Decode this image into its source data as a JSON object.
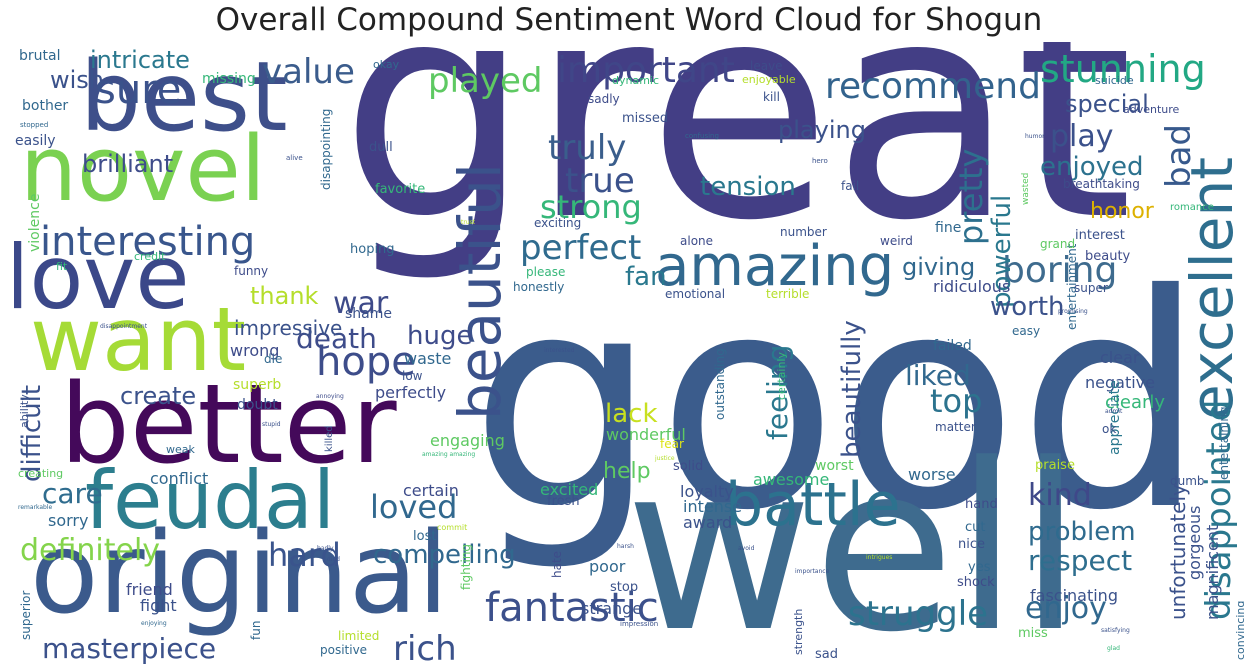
{
  "chart_data": {
    "type": "wordcloud",
    "title": "Overall Compound Sentiment Word Cloud for Shogun",
    "colormap": "viridis",
    "background": "#ffffff",
    "words": [
      {
        "text": "great",
        "weight": 100,
        "color": "#433e85"
      },
      {
        "text": "good",
        "weight": 96,
        "color": "#3b5c8c"
      },
      {
        "text": "well",
        "weight": 88,
        "color": "#3e6b8e"
      },
      {
        "text": "original",
        "weight": 50,
        "color": "#3b5a8c"
      },
      {
        "text": "better",
        "weight": 48,
        "color": "#44095a"
      },
      {
        "text": "best",
        "weight": 46,
        "color": "#3e4f8a"
      },
      {
        "text": "novel",
        "weight": 44,
        "color": "#7ad151"
      },
      {
        "text": "love",
        "weight": 44,
        "color": "#3b4889"
      },
      {
        "text": "want",
        "weight": 42,
        "color": "#a5db36"
      },
      {
        "text": "feudal",
        "weight": 40,
        "color": "#2c7e8e"
      },
      {
        "text": "beautiful",
        "weight": 36,
        "color": "#3b528b"
      },
      {
        "text": "excellent",
        "weight": 36,
        "color": "#2e6e8e"
      },
      {
        "text": "amazing",
        "weight": 32,
        "color": "#31688e"
      },
      {
        "text": "battle",
        "weight": 30,
        "color": "#2c728e"
      },
      {
        "text": "interesting",
        "weight": 22,
        "color": "#39568c"
      },
      {
        "text": "fantastic",
        "weight": 22,
        "color": "#3c508b"
      },
      {
        "text": "sure",
        "weight": 22,
        "color": "#3b528b"
      },
      {
        "text": "important",
        "weight": 22,
        "color": "#404688"
      },
      {
        "text": "hope",
        "weight": 22,
        "color": "#3d4d8a"
      },
      {
        "text": "value",
        "weight": 20,
        "color": "#3b5c8c"
      },
      {
        "text": "played",
        "weight": 20,
        "color": "#5ec962"
      },
      {
        "text": "recommend",
        "weight": 20,
        "color": "#33638d"
      },
      {
        "text": "stunning",
        "weight": 20,
        "color": "#22a884"
      },
      {
        "text": "disappointed",
        "weight": 20,
        "color": "#2a788e"
      },
      {
        "text": "truly",
        "weight": 20,
        "color": "#3a5e8c"
      },
      {
        "text": "true",
        "weight": 20,
        "color": "#3b528b"
      },
      {
        "text": "strong",
        "weight": 20,
        "color": "#35b779"
      },
      {
        "text": "perfect",
        "weight": 20,
        "color": "#2f6b8e"
      },
      {
        "text": "boring",
        "weight": 20,
        "color": "#3e6b8e"
      },
      {
        "text": "bad",
        "weight": 20,
        "color": "#37598c"
      },
      {
        "text": "pretty",
        "weight": 20,
        "color": "#2d708e"
      },
      {
        "text": "loved",
        "weight": 20,
        "color": "#31688e"
      },
      {
        "text": "struggle",
        "weight": 20,
        "color": "#2c738e"
      },
      {
        "text": "definitely",
        "weight": 18,
        "color": "#84d44b"
      },
      {
        "text": "hard",
        "weight": 18,
        "color": "#3a548c"
      },
      {
        "text": "rich",
        "weight": 18,
        "color": "#3b528b"
      },
      {
        "text": "masterpiece",
        "weight": 18,
        "color": "#3b518b"
      },
      {
        "text": "enjoy",
        "weight": 18,
        "color": "#31688e"
      },
      {
        "text": "kind",
        "weight": 18,
        "color": "#3f4889"
      },
      {
        "text": "problem",
        "weight": 18,
        "color": "#2f6b8e"
      },
      {
        "text": "respect",
        "weight": 18,
        "color": "#2e6e8e"
      },
      {
        "text": "play",
        "weight": 18,
        "color": "#3b518b"
      },
      {
        "text": "top",
        "weight": 18,
        "color": "#2c738e"
      },
      {
        "text": "war",
        "weight": 18,
        "color": "#3e4a89"
      },
      {
        "text": "death",
        "weight": 18,
        "color": "#3e4c8a"
      },
      {
        "text": "care",
        "weight": 18,
        "color": "#2f6c8e"
      },
      {
        "text": "difficult",
        "weight": 16,
        "color": "#3b528b"
      },
      {
        "text": "huge",
        "weight": 16,
        "color": "#3e4c8a"
      },
      {
        "text": "powerful",
        "weight": 16,
        "color": "#2a788e"
      },
      {
        "text": "feeling",
        "weight": 16,
        "color": "#2a788e"
      },
      {
        "text": "beautifully",
        "weight": 16,
        "color": "#3b528b"
      },
      {
        "text": "compelling",
        "weight": 16,
        "color": "#31688e"
      },
      {
        "text": "lack",
        "weight": 16,
        "color": "#c8e020"
      },
      {
        "text": "liked",
        "weight": 16,
        "color": "#31688e"
      },
      {
        "text": "worth",
        "weight": 16,
        "color": "#3b528b"
      },
      {
        "text": "enjoyed",
        "weight": 16,
        "color": "#2c728e"
      },
      {
        "text": "special",
        "weight": 16,
        "color": "#3b528b"
      },
      {
        "text": "brilliant",
        "weight": 16,
        "color": "#3e4c8a"
      },
      {
        "text": "intricate",
        "weight": 16,
        "color": "#2a788e"
      },
      {
        "text": "wish",
        "weight": 16,
        "color": "#3b528b"
      },
      {
        "text": "tension",
        "weight": 16,
        "color": "#2a788e"
      },
      {
        "text": "playing",
        "weight": 16,
        "color": "#3b528b"
      },
      {
        "text": "fan",
        "weight": 16,
        "color": "#2a788e"
      },
      {
        "text": "giving",
        "weight": 16,
        "color": "#31688e"
      },
      {
        "text": "create",
        "weight": 16,
        "color": "#3b528b"
      },
      {
        "text": "thank",
        "weight": 16,
        "color": "#b5de2b"
      },
      {
        "text": "help",
        "weight": 14,
        "color": "#5ec962"
      },
      {
        "text": "honor",
        "weight": 14,
        "color": "#ddb100"
      },
      {
        "text": "unfortunately",
        "weight": 14,
        "color": "#3b528b"
      },
      {
        "text": "impressive",
        "weight": 13,
        "color": "#3b528b"
      },
      {
        "text": "friend",
        "weight": 12,
        "color": "#3e4c8a"
      },
      {
        "text": "fight",
        "weight": 12,
        "color": "#3b528b"
      },
      {
        "text": "poor",
        "weight": 12,
        "color": "#31688e"
      },
      {
        "text": "strange",
        "weight": 12,
        "color": "#3b528b"
      },
      {
        "text": "engaging",
        "weight": 12,
        "color": "#5ec962"
      },
      {
        "text": "excited",
        "weight": 12,
        "color": "#35b779"
      },
      {
        "text": "clearly",
        "weight": 12,
        "color": "#35b779"
      },
      {
        "text": "clear",
        "weight": 12,
        "color": "#3b528b"
      },
      {
        "text": "negative",
        "weight": 12,
        "color": "#3b528b"
      },
      {
        "text": "ridiculous",
        "weight": 12,
        "color": "#3e4c8a"
      },
      {
        "text": "worse",
        "weight": 12,
        "color": "#31688e"
      },
      {
        "text": "awesome",
        "weight": 12,
        "color": "#35b779"
      },
      {
        "text": "magnificent",
        "weight": 12,
        "color": "#3b528b"
      },
      {
        "text": "gorgeous",
        "weight": 12,
        "color": "#3b528b"
      },
      {
        "text": "fascinating",
        "weight": 12,
        "color": "#3b528b"
      },
      {
        "text": "conflict",
        "weight": 12,
        "color": "#31688e"
      },
      {
        "text": "sorry",
        "weight": 12,
        "color": "#31688e"
      },
      {
        "text": "certain",
        "weight": 12,
        "color": "#3e4c8a"
      },
      {
        "text": "loyalty",
        "weight": 12,
        "color": "#3b528b"
      },
      {
        "text": "intense",
        "weight": 12,
        "color": "#31688e"
      },
      {
        "text": "award",
        "weight": 12,
        "color": "#3b528b"
      },
      {
        "text": "perfectly",
        "weight": 12,
        "color": "#3e4c8a"
      },
      {
        "text": "superb",
        "weight": 12,
        "color": "#b5de2b"
      },
      {
        "text": "waste",
        "weight": 12,
        "color": "#31688e"
      },
      {
        "text": "wrong",
        "weight": 12,
        "color": "#3e4c8a"
      },
      {
        "text": "shame",
        "weight": 12,
        "color": "#3b528b"
      },
      {
        "text": "wonderful",
        "weight": 12,
        "color": "#5ec962"
      },
      {
        "text": "doubt",
        "weight": 12,
        "color": "#3b528b"
      },
      {
        "text": "bother",
        "weight": 12,
        "color": "#31688e"
      },
      {
        "text": "easily",
        "weight": 12,
        "color": "#3b528b"
      },
      {
        "text": "missing",
        "weight": 11,
        "color": "#35b779"
      },
      {
        "text": "brutal",
        "weight": 11,
        "color": "#31688e"
      },
      {
        "text": "violence",
        "weight": 11,
        "color": "#5ec962"
      },
      {
        "text": "entertainment",
        "weight": 11,
        "color": "#31688e"
      },
      {
        "text": "appreciate",
        "weight": 11,
        "color": "#2a788e"
      },
      {
        "text": "entertaining",
        "weight": 10,
        "color": "#31688e"
      },
      {
        "text": "outstanding",
        "weight": 10,
        "color": "#31688e"
      },
      {
        "text": "certainly",
        "weight": 10,
        "color": "#35b779"
      },
      {
        "text": "failed",
        "weight": 11,
        "color": "#31688e"
      },
      {
        "text": "fine",
        "weight": 11,
        "color": "#31688e"
      },
      {
        "text": "interest",
        "weight": 11,
        "color": "#3b528b"
      },
      {
        "text": "beauty",
        "weight": 11,
        "color": "#3e4c8a"
      },
      {
        "text": "worst",
        "weight": 11,
        "color": "#5ec962"
      },
      {
        "text": "praise",
        "weight": 11,
        "color": "#b5de2b"
      },
      {
        "text": "solid",
        "weight": 11,
        "color": "#3e4c8a"
      },
      {
        "text": "fresh",
        "weight": 11,
        "color": "#3b528b"
      },
      {
        "text": "lost",
        "weight": 11,
        "color": "#31688e"
      },
      {
        "text": "hand",
        "weight": 11,
        "color": "#3e4c8a"
      },
      {
        "text": "cut",
        "weight": 11,
        "color": "#31688e"
      },
      {
        "text": "nice",
        "weight": 11,
        "color": "#3b528b"
      },
      {
        "text": "yes",
        "weight": 11,
        "color": "#31688e"
      },
      {
        "text": "shock",
        "weight": 11,
        "color": "#3e4c8a"
      },
      {
        "text": "miss",
        "weight": 11,
        "color": "#5ec962"
      },
      {
        "text": "sad",
        "weight": 11,
        "color": "#3b528b"
      },
      {
        "text": "stop",
        "weight": 11,
        "color": "#3b528b"
      },
      {
        "text": "fun",
        "weight": 10,
        "color": "#31688e"
      },
      {
        "text": "positive",
        "weight": 10,
        "color": "#31688e"
      },
      {
        "text": "limited",
        "weight": 10,
        "color": "#b5de2b"
      },
      {
        "text": "superior",
        "weight": 10,
        "color": "#31688e"
      },
      {
        "text": "fighting",
        "weight": 9,
        "color": "#5ec962"
      },
      {
        "text": "hate",
        "weight": 10,
        "color": "#3e4c8a"
      },
      {
        "text": "dumb",
        "weight": 10,
        "color": "#3b528b"
      },
      {
        "text": "matter",
        "weight": 10,
        "color": "#3b528b"
      },
      {
        "text": "ok",
        "weight": 10,
        "color": "#3b528b"
      },
      {
        "text": "fear",
        "weight": 9,
        "color": "#dde318"
      },
      {
        "text": "die",
        "weight": 10,
        "color": "#31688e"
      },
      {
        "text": "low",
        "weight": 9,
        "color": "#3b528b"
      },
      {
        "text": "easy",
        "weight": 10,
        "color": "#31688e"
      },
      {
        "text": "super",
        "weight": 10,
        "color": "#3b528b"
      },
      {
        "text": "grand",
        "weight": 10,
        "color": "#5ec962"
      },
      {
        "text": "terrible",
        "weight": 10,
        "color": "#b5de2b"
      },
      {
        "text": "emotional",
        "weight": 10,
        "color": "#3b528b"
      },
      {
        "text": "honestly",
        "weight": 10,
        "color": "#31688e"
      },
      {
        "text": "please",
        "weight": 10,
        "color": "#35b779"
      },
      {
        "text": "alone",
        "weight": 10,
        "color": "#3e4c8a"
      },
      {
        "text": "number",
        "weight": 10,
        "color": "#3b528b"
      },
      {
        "text": "weird",
        "weight": 10,
        "color": "#3e4c8a"
      },
      {
        "text": "romance",
        "weight": 9,
        "color": "#35b779"
      },
      {
        "text": "breathtaking",
        "weight": 10,
        "color": "#3e4c8a"
      },
      {
        "text": "fail",
        "weight": 10,
        "color": "#3b528b"
      },
      {
        "text": "hoping",
        "weight": 10,
        "color": "#31688e"
      },
      {
        "text": "exciting",
        "weight": 10,
        "color": "#3b528b"
      },
      {
        "text": "favorite",
        "weight": 10,
        "color": "#35b779"
      },
      {
        "text": "dull",
        "weight": 10,
        "color": "#3b528b"
      },
      {
        "text": "disappointing",
        "weight": 10,
        "color": "#31688e"
      },
      {
        "text": "missed",
        "weight": 10,
        "color": "#3b528b"
      },
      {
        "text": "sadly",
        "weight": 10,
        "color": "#3e4c8a"
      },
      {
        "text": "kill",
        "weight": 10,
        "color": "#3b528b"
      },
      {
        "text": "leave",
        "weight": 10,
        "color": "#3e4c8a"
      },
      {
        "text": "enjoyable",
        "weight": 10,
        "color": "#b5de2b"
      },
      {
        "text": "dynamic",
        "weight": 9,
        "color": "#35b779"
      },
      {
        "text": "okay",
        "weight": 9,
        "color": "#31688e"
      },
      {
        "text": "suicide",
        "weight": 9,
        "color": "#31688e"
      },
      {
        "text": "adventure",
        "weight": 9,
        "color": "#3e4c8a"
      },
      {
        "text": "funny",
        "weight": 9,
        "color": "#3e4c8a"
      },
      {
        "text": "credit",
        "weight": 9,
        "color": "#35b779"
      },
      {
        "text": "fit",
        "weight": 9,
        "color": "#35b779"
      },
      {
        "text": "ability",
        "weight": 9,
        "color": "#3b528b"
      },
      {
        "text": "weak",
        "weight": 9,
        "color": "#31688e"
      },
      {
        "text": "creating",
        "weight": 9,
        "color": "#5ec962"
      },
      {
        "text": "killed",
        "weight": 8,
        "color": "#3b528b"
      },
      {
        "text": "wasted",
        "weight": 7,
        "color": "#5ec962"
      },
      {
        "text": "confusing",
        "weight": 6,
        "color": "#31688e"
      },
      {
        "text": "stopped",
        "weight": 6,
        "color": "#31688e"
      },
      {
        "text": "alive",
        "weight": 6,
        "color": "#3b528b"
      },
      {
        "text": "hero",
        "weight": 6,
        "color": "#3b528b"
      },
      {
        "text": "humor",
        "weight": 5,
        "color": "#3b528b"
      },
      {
        "text": "trust",
        "weight": 5,
        "color": "#b5de2b"
      },
      {
        "text": "disappointment",
        "weight": 5,
        "color": "#3b528b"
      },
      {
        "text": "promising",
        "weight": 5,
        "color": "#3b528b"
      },
      {
        "text": "interested",
        "weight": 5,
        "color": "#3b528b"
      },
      {
        "text": "annoying",
        "weight": 5,
        "color": "#3e4c8a"
      },
      {
        "text": "stupid",
        "weight": 5,
        "color": "#3b528b"
      },
      {
        "text": "amazing amazing",
        "weight": 5,
        "color": "#35b779"
      },
      {
        "text": "justice",
        "weight": 5,
        "color": "#b5de2b"
      },
      {
        "text": "admit",
        "weight": 5,
        "color": "#3b528b"
      },
      {
        "text": "remarkable",
        "weight": 5,
        "color": "#31688e"
      },
      {
        "text": "commit",
        "weight": 6,
        "color": "#b5de2b"
      },
      {
        "text": "badly",
        "weight": 5,
        "color": "#3b528b"
      },
      {
        "text": "died",
        "weight": 5,
        "color": "#3b528b"
      },
      {
        "text": "harsh",
        "weight": 5,
        "color": "#3b528b"
      },
      {
        "text": "intrigues",
        "weight": 5,
        "color": "#b5de2b"
      },
      {
        "text": "avoid",
        "weight": 5,
        "color": "#3b528b"
      },
      {
        "text": "importance",
        "weight": 5,
        "color": "#3b528b"
      },
      {
        "text": "enjoying",
        "weight": 5,
        "color": "#31688e"
      },
      {
        "text": "impression",
        "weight": 5,
        "color": "#3b528b"
      },
      {
        "text": "strength",
        "weight": 7,
        "color": "#3b528b"
      },
      {
        "text": "satisfying",
        "weight": 5,
        "color": "#3b528b"
      },
      {
        "text": "glad",
        "weight": 5,
        "color": "#35b779"
      },
      {
        "text": "convincing",
        "weight": 8,
        "color": "#31688e"
      }
    ]
  }
}
